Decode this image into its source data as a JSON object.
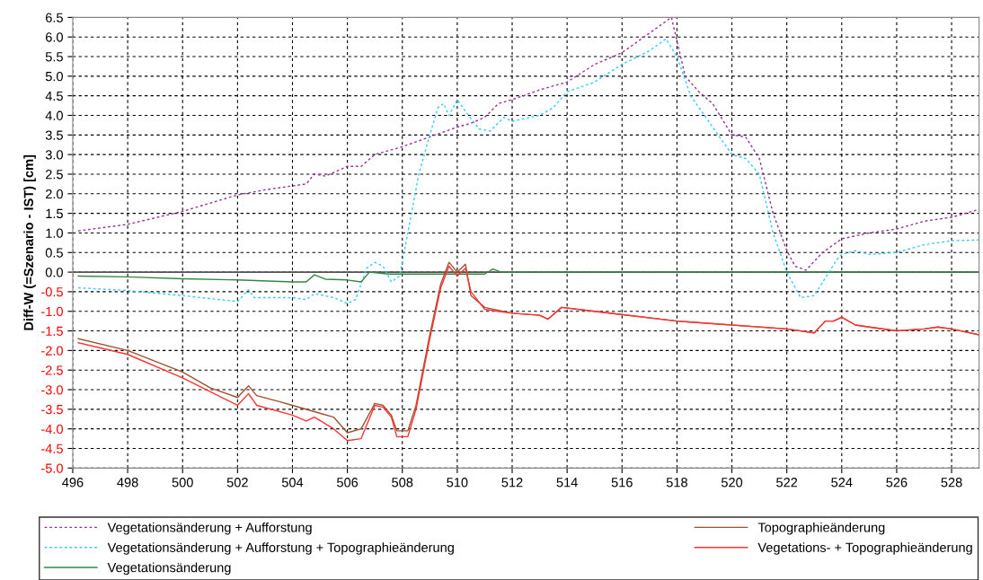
{
  "chart_data": {
    "type": "line",
    "ylabel": "Diff-W (=Szenario - IST) [cm]",
    "xlim": [
      496,
      529
    ],
    "xticks": [
      496,
      498,
      500,
      502,
      504,
      506,
      508,
      510,
      512,
      514,
      516,
      518,
      520,
      522,
      524,
      526,
      528
    ],
    "ylim": [
      -5,
      6.5
    ],
    "yticks": [
      {
        "value": -5,
        "label": "-5.0"
      },
      {
        "value": -4.5,
        "label": "-4.5"
      },
      {
        "value": -4,
        "label": "-4.0"
      },
      {
        "value": -3.5,
        "label": "-3.5"
      },
      {
        "value": -3,
        "label": "-3.0"
      },
      {
        "value": -2.5,
        "label": "-2.5"
      },
      {
        "value": -2,
        "label": "-2.0"
      },
      {
        "value": -1.5,
        "label": "-1.5"
      },
      {
        "value": -1,
        "label": "-1.0"
      },
      {
        "value": -0.5,
        "label": "-0.5"
      },
      {
        "value": 0,
        "label": "0.0"
      },
      {
        "value": 0.5,
        "label": "0.5"
      },
      {
        "value": 1,
        "label": "1.0"
      },
      {
        "value": 1.5,
        "label": "1.5"
      },
      {
        "value": 2,
        "label": "2.0"
      },
      {
        "value": 2.5,
        "label": "2.5"
      },
      {
        "value": 3,
        "label": "3.0"
      },
      {
        "value": 3.5,
        "label": "3.5"
      },
      {
        "value": 4,
        "label": "4.0"
      },
      {
        "value": 4.5,
        "label": "4.5"
      },
      {
        "value": 5,
        "label": "5.0"
      },
      {
        "value": 5.5,
        "label": "5.5"
      },
      {
        "value": 6,
        "label": "6.0"
      },
      {
        "value": 6.5,
        "label": "6.5"
      }
    ],
    "grid": true,
    "legend": "bottom",
    "marker": "none",
    "ref_lines": [
      {
        "axis": "y",
        "value": 0,
        "color": "#555555"
      }
    ],
    "series": [
      {
        "name": "Vegetationsänderung + Aufforstung",
        "color": "#993399",
        "line_style": "dashed",
        "x": [
          496.2,
          498,
          500,
          502,
          503,
          504,
          504.5,
          504.8,
          505.2,
          506,
          506.5,
          507,
          508,
          509,
          510,
          510.5,
          511,
          511.5,
          512,
          513,
          514,
          515,
          516,
          517,
          517.8,
          518,
          518.3,
          518.8,
          519.3,
          520,
          520.5,
          521,
          521.5,
          522,
          522.3,
          522.7,
          523.3,
          524,
          525,
          526,
          527,
          528,
          529
        ],
        "values": [
          1.05,
          1.22,
          1.55,
          1.97,
          2.1,
          2.2,
          2.25,
          2.5,
          2.45,
          2.7,
          2.7,
          3.0,
          3.2,
          3.45,
          3.7,
          3.8,
          3.95,
          4.3,
          4.4,
          4.65,
          4.85,
          5.3,
          5.6,
          6.1,
          6.5,
          5.9,
          5.0,
          4.6,
          4.3,
          3.5,
          3.45,
          2.9,
          1.5,
          0.55,
          0.15,
          0.05,
          0.5,
          0.85,
          1.0,
          1.1,
          1.3,
          1.4,
          1.6
        ]
      },
      {
        "name": "Vegetationsänderung + Aufforstung + Topographieänderung",
        "color": "#33ccff",
        "line_style": "dashed",
        "x": [
          496.2,
          498,
          500,
          502,
          502.4,
          502.6,
          504,
          504.5,
          504.8,
          505.5,
          506,
          506.3,
          506.7,
          507,
          507.3,
          507.6,
          507.9,
          508.2,
          508.6,
          509,
          509.3,
          509.5,
          509.7,
          510,
          510.3,
          510.8,
          511.2,
          511.7,
          512,
          513,
          513.5,
          514,
          515,
          516,
          517,
          517.6,
          518,
          518.5,
          519.2,
          520,
          520.5,
          521,
          521.5,
          522,
          522.5,
          523,
          523.8,
          524,
          524.5,
          525,
          526,
          527,
          528,
          529
        ],
        "values": [
          -0.4,
          -0.47,
          -0.6,
          -0.75,
          -0.45,
          -0.65,
          -0.65,
          -0.7,
          -0.55,
          -0.65,
          -0.8,
          -0.7,
          0.1,
          0.25,
          0.15,
          -0.25,
          -0.1,
          1.0,
          2.5,
          3.5,
          4.2,
          4.3,
          4.0,
          4.4,
          4.1,
          3.65,
          3.6,
          3.95,
          3.85,
          4.0,
          4.2,
          4.6,
          4.85,
          5.3,
          5.65,
          5.95,
          5.5,
          4.5,
          3.8,
          3.0,
          2.9,
          2.5,
          1.0,
          0.0,
          -0.65,
          -0.6,
          0.3,
          0.45,
          0.55,
          0.45,
          0.5,
          0.7,
          0.8,
          0.82
        ]
      },
      {
        "name": "Vegetationsänderung",
        "color": "#338844",
        "line_style": "solid",
        "x": [
          496.2,
          498,
          500,
          502,
          504,
          504.5,
          504.8,
          505.2,
          506,
          506.5,
          506.8,
          507.5,
          509,
          511,
          511.3,
          511.6,
          529
        ],
        "values": [
          -0.1,
          -0.12,
          -0.17,
          -0.2,
          -0.25,
          -0.25,
          -0.07,
          -0.18,
          -0.2,
          -0.25,
          0.0,
          -0.05,
          -0.05,
          -0.05,
          0.08,
          0.0,
          0.0
        ]
      },
      {
        "name": "Topographieänderung",
        "color": "#a0522d",
        "line_style": "solid",
        "x": [
          496.2,
          498,
          500,
          501,
          502,
          502.4,
          502.7,
          503.5,
          504,
          505,
          505.5,
          506,
          506.5,
          507,
          507.3,
          507.6,
          507.8,
          508.2,
          508.5,
          509,
          509.4,
          509.7,
          510,
          510.3,
          510.5,
          511,
          512,
          513,
          513.3,
          513.8,
          515,
          518,
          522,
          523,
          523.4,
          523.7,
          524,
          524.5,
          525,
          526,
          527,
          527.5,
          528,
          529
        ],
        "values": [
          -1.7,
          -2.0,
          -2.55,
          -2.95,
          -3.2,
          -2.9,
          -3.15,
          -3.3,
          -3.4,
          -3.6,
          -3.7,
          -4.1,
          -4.0,
          -3.35,
          -3.4,
          -3.65,
          -4.05,
          -4.05,
          -3.4,
          -1.6,
          -0.3,
          0.25,
          0.0,
          0.2,
          -0.6,
          -0.9,
          -1.05,
          -1.1,
          -1.2,
          -0.9,
          -1.0,
          -1.25,
          -1.45,
          -1.55,
          -1.25,
          -1.25,
          -1.15,
          -1.35,
          -1.4,
          -1.5,
          -1.45,
          -1.4,
          -1.45,
          -1.6
        ]
      },
      {
        "name": "Vegetations- + Topographieänderung",
        "color": "#ff3333",
        "line_style": "solid",
        "x": [
          496.2,
          498,
          500,
          502,
          502.4,
          502.7,
          504,
          504.5,
          504.8,
          505.5,
          506,
          506.5,
          507,
          507.3,
          507.6,
          507.8,
          508.2,
          508.5,
          509,
          509.4,
          509.7,
          510,
          510.3,
          510.5,
          511,
          511.5,
          512,
          513,
          513.3,
          513.8,
          515,
          518,
          522,
          523,
          523.4,
          523.7,
          524,
          524.5,
          525,
          526,
          527,
          527.5,
          528,
          529
        ],
        "values": [
          -1.8,
          -2.1,
          -2.7,
          -3.4,
          -3.1,
          -3.4,
          -3.65,
          -3.8,
          -3.7,
          -4.0,
          -4.3,
          -4.25,
          -3.4,
          -3.45,
          -3.7,
          -4.2,
          -4.2,
          -3.5,
          -1.7,
          -0.4,
          0.15,
          -0.1,
          0.1,
          -0.5,
          -0.95,
          -1.0,
          -1.05,
          -1.1,
          -1.2,
          -0.9,
          -1.0,
          -1.25,
          -1.45,
          -1.55,
          -1.25,
          -1.25,
          -1.15,
          -1.35,
          -1.4,
          -1.5,
          -1.45,
          -1.4,
          -1.45,
          -1.6
        ]
      }
    ]
  }
}
